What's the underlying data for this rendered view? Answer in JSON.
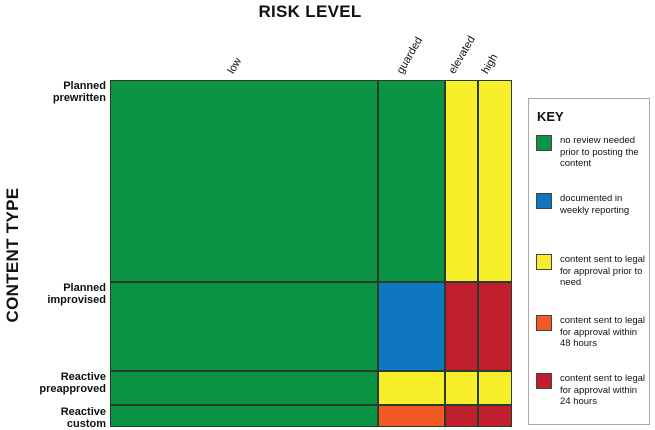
{
  "axis_title_x": "RISK LEVEL",
  "axis_title_y": "CONTENT TYPE",
  "columns": [
    "low",
    "guarded",
    "elevated",
    "high"
  ],
  "rows": [
    {
      "line1": "Planned",
      "line2": "prewritten"
    },
    {
      "line1": "Planned",
      "line2": "improvised"
    },
    {
      "line1": "Reactive",
      "line2": "preapproved"
    },
    {
      "line1": "Reactive",
      "line2": "custom"
    }
  ],
  "colors": {
    "green": "#0a9444",
    "blue": "#0f77c2",
    "yellow": "#f6ef2a",
    "orange": "#f15a24",
    "red": "#c0202e"
  },
  "matrix": [
    [
      "green",
      "green",
      "yellow",
      "yellow"
    ],
    [
      "green",
      "blue",
      "red",
      "red"
    ],
    [
      "green",
      "yellow",
      "yellow",
      "yellow"
    ],
    [
      "green",
      "orange",
      "red",
      "red"
    ]
  ],
  "key": {
    "title": "KEY",
    "items": [
      {
        "color": "green",
        "text": "no review needed prior to posting the content"
      },
      {
        "color": "blue",
        "text": "documented in weekly reporting"
      },
      {
        "color": "yellow",
        "text": "content sent to legal for approval prior to need"
      },
      {
        "color": "orange",
        "text": "content sent to legal for approval within 48 hours"
      },
      {
        "color": "red",
        "text": "content sent to legal for approval within 24 hours"
      }
    ]
  }
}
